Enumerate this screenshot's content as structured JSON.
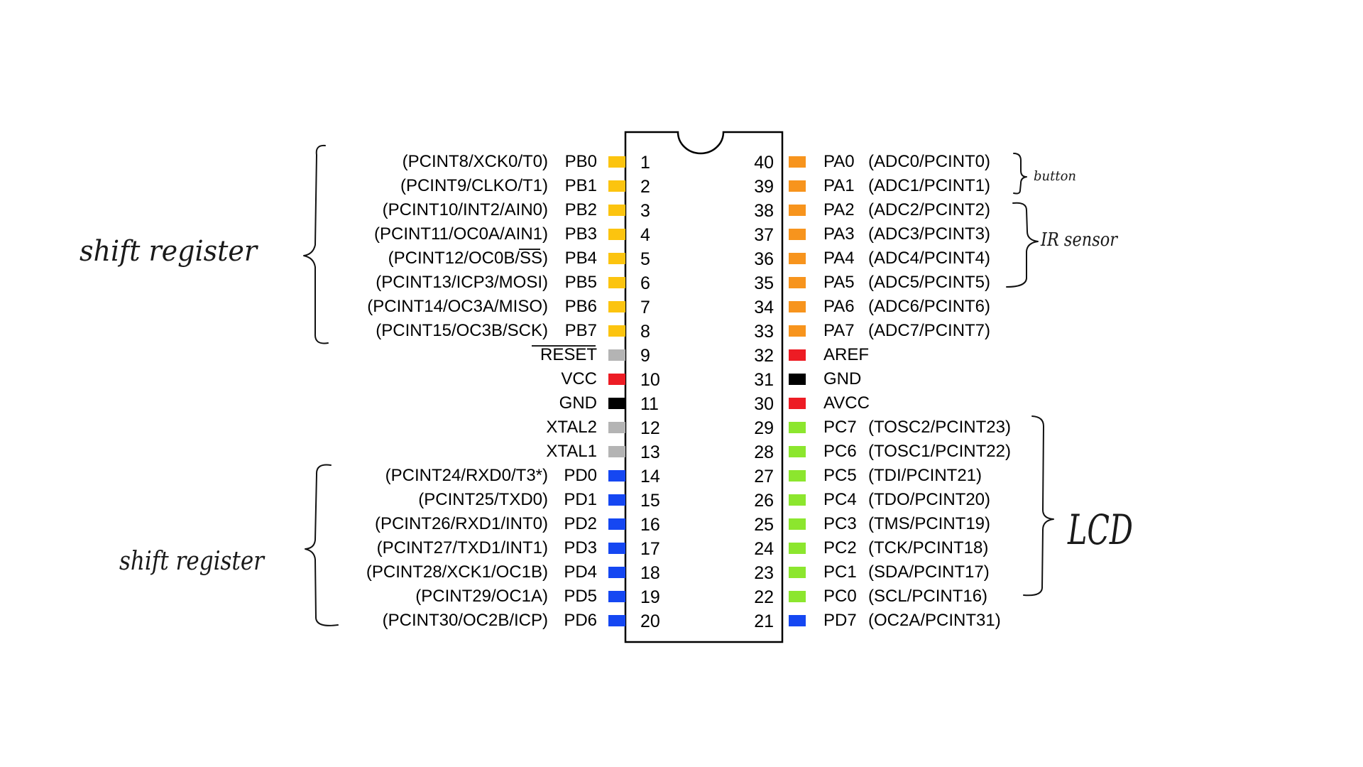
{
  "colors": {
    "portA": "#f7941d",
    "portB": "#fcc40f",
    "portC": "#8ce62e",
    "portD": "#1547f2",
    "power": "#ed1c24",
    "ground": "#000000",
    "misc": "#b4b4b4"
  },
  "chip": {
    "left_pins": [
      {
        "num": "1",
        "name": "PB0",
        "alt": "(PCINT8/XCK0/T0)",
        "color": "#fcc40f"
      },
      {
        "num": "2",
        "name": "PB1",
        "alt": "(PCINT9/CLKO/T1)",
        "color": "#fcc40f"
      },
      {
        "num": "3",
        "name": "PB2",
        "alt": "(PCINT10/INT2/AIN0)",
        "color": "#fcc40f"
      },
      {
        "num": "4",
        "name": "PB3",
        "alt": "(PCINT11/OC0A/AIN1)",
        "color": "#fcc40f"
      },
      {
        "num": "5",
        "name": "PB4",
        "alt": "(PCINT12/OC0B/SS)",
        "color": "#fcc40f"
      },
      {
        "num": "6",
        "name": "PB5",
        "alt": "(PCINT13/ICP3/MOSI)",
        "color": "#fcc40f"
      },
      {
        "num": "7",
        "name": "PB6",
        "alt": "(PCINT14/OC3A/MISO)",
        "color": "#fcc40f"
      },
      {
        "num": "8",
        "name": "PB7",
        "alt": "(PCINT15/OC3B/SCK)",
        "color": "#fcc40f"
      },
      {
        "num": "9",
        "name": "RESET",
        "alt": "",
        "color": "#b4b4b4"
      },
      {
        "num": "10",
        "name": "VCC",
        "alt": "",
        "color": "#ed1c24"
      },
      {
        "num": "11",
        "name": "GND",
        "alt": "",
        "color": "#000000"
      },
      {
        "num": "12",
        "name": "XTAL2",
        "alt": "",
        "color": "#b4b4b4"
      },
      {
        "num": "13",
        "name": "XTAL1",
        "alt": "",
        "color": "#b4b4b4"
      },
      {
        "num": "14",
        "name": "PD0",
        "alt": "(PCINT24/RXD0/T3*)",
        "color": "#1547f2"
      },
      {
        "num": "15",
        "name": "PD1",
        "alt": "(PCINT25/TXD0)",
        "color": "#1547f2"
      },
      {
        "num": "16",
        "name": "PD2",
        "alt": "(PCINT26/RXD1/INT0)",
        "color": "#1547f2"
      },
      {
        "num": "17",
        "name": "PD3",
        "alt": "(PCINT27/TXD1/INT1)",
        "color": "#1547f2"
      },
      {
        "num": "18",
        "name": "PD4",
        "alt": "(PCINT28/XCK1/OC1B)",
        "color": "#1547f2"
      },
      {
        "num": "19",
        "name": "PD5",
        "alt": "(PCINT29/OC1A)",
        "color": "#1547f2"
      },
      {
        "num": "20",
        "name": "PD6",
        "alt": "(PCINT30/OC2B/ICP)",
        "color": "#1547f2"
      }
    ],
    "right_pins": [
      {
        "num": "40",
        "name": "PA0",
        "alt": "(ADC0/PCINT0)",
        "color": "#f7941d"
      },
      {
        "num": "39",
        "name": "PA1",
        "alt": "(ADC1/PCINT1)",
        "color": "#f7941d"
      },
      {
        "num": "38",
        "name": "PA2",
        "alt": "(ADC2/PCINT2)",
        "color": "#f7941d"
      },
      {
        "num": "37",
        "name": "PA3",
        "alt": "(ADC3/PCINT3)",
        "color": "#f7941d"
      },
      {
        "num": "36",
        "name": "PA4",
        "alt": "(ADC4/PCINT4)",
        "color": "#f7941d"
      },
      {
        "num": "35",
        "name": "PA5",
        "alt": "(ADC5/PCINT5)",
        "color": "#f7941d"
      },
      {
        "num": "34",
        "name": "PA6",
        "alt": "(ADC6/PCINT6)",
        "color": "#f7941d"
      },
      {
        "num": "33",
        "name": "PA7",
        "alt": "(ADC7/PCINT7)",
        "color": "#f7941d"
      },
      {
        "num": "32",
        "name": "AREF",
        "alt": "",
        "color": "#ed1c24"
      },
      {
        "num": "31",
        "name": "GND",
        "alt": "",
        "color": "#000000"
      },
      {
        "num": "30",
        "name": "AVCC",
        "alt": "",
        "color": "#ed1c24"
      },
      {
        "num": "29",
        "name": "PC7",
        "alt": "(TOSC2/PCINT23)",
        "color": "#8ce62e"
      },
      {
        "num": "28",
        "name": "PC6",
        "alt": "(TOSC1/PCINT22)",
        "color": "#8ce62e"
      },
      {
        "num": "27",
        "name": "PC5",
        "alt": "(TDI/PCINT21)",
        "color": "#8ce62e"
      },
      {
        "num": "26",
        "name": "PC4",
        "alt": "(TDO/PCINT20)",
        "color": "#8ce62e"
      },
      {
        "num": "25",
        "name": "PC3",
        "alt": "(TMS/PCINT19)",
        "color": "#8ce62e"
      },
      {
        "num": "24",
        "name": "PC2",
        "alt": "(TCK/PCINT18)",
        "color": "#8ce62e"
      },
      {
        "num": "23",
        "name": "PC1",
        "alt": "(SDA/PCINT17)",
        "color": "#8ce62e"
      },
      {
        "num": "22",
        "name": "PC0",
        "alt": "(SCL/PCINT16)",
        "color": "#8ce62e"
      },
      {
        "num": "21",
        "name": "PD7",
        "alt": "(OC2A/PCINT31)",
        "color": "#1547f2"
      }
    ]
  },
  "annotations": {
    "top_left": "shift register",
    "bottom_left": "shift register",
    "button": "button",
    "ir_sensor": "IR sensor",
    "lcd": "LCD"
  }
}
